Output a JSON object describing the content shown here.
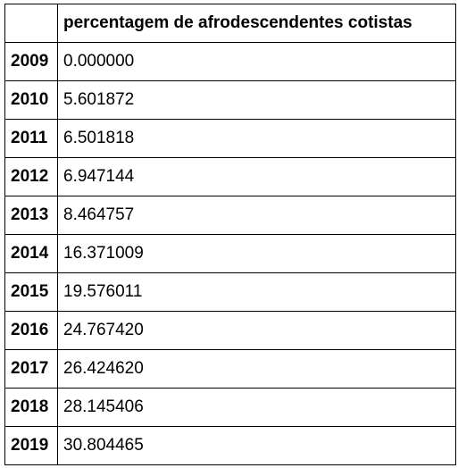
{
  "table": {
    "index_header": "",
    "columns": [
      "percentagem de afrodescendentes cotistas"
    ],
    "rows": [
      {
        "index": "2009",
        "value": "0.000000"
      },
      {
        "index": "2010",
        "value": "5.601872"
      },
      {
        "index": "2011",
        "value": "6.501818"
      },
      {
        "index": "2012",
        "value": "6.947144"
      },
      {
        "index": "2013",
        "value": "8.464757"
      },
      {
        "index": "2014",
        "value": "16.371009"
      },
      {
        "index": "2015",
        "value": "19.576011"
      },
      {
        "index": "2016",
        "value": "24.767420"
      },
      {
        "index": "2017",
        "value": "26.424620"
      },
      {
        "index": "2018",
        "value": "28.145406"
      },
      {
        "index": "2019",
        "value": "30.804465"
      }
    ]
  }
}
